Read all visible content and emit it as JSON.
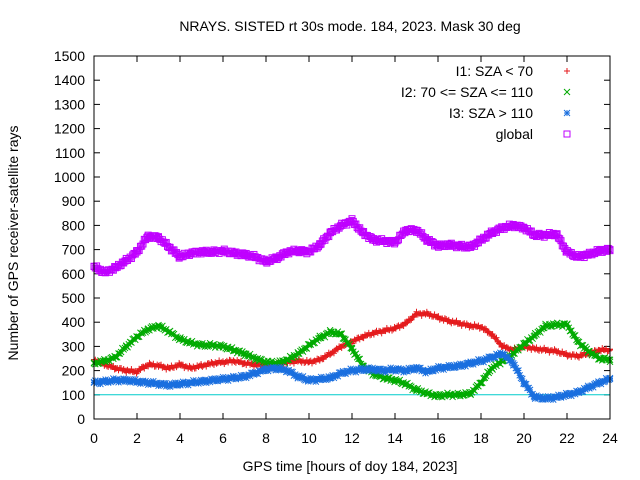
{
  "chart_data": {
    "type": "scatter",
    "title": "NRAYS. SISTED rt 30s mode. 184, 2023. Mask 30 deg",
    "xlabel": "GPS time [hours of doy 184, 2023]",
    "ylabel": "Number of GPS receiver-satellite rays",
    "xlim": [
      0,
      24
    ],
    "ylim": [
      0,
      1500
    ],
    "xticks": [
      0,
      2,
      4,
      6,
      8,
      10,
      12,
      14,
      16,
      18,
      20,
      22,
      24
    ],
    "yticks": [
      0,
      100,
      200,
      300,
      400,
      500,
      600,
      700,
      800,
      900,
      1000,
      1100,
      1200,
      1300,
      1400,
      1500
    ],
    "grid": false,
    "legend_position": "top-right",
    "reference_line": {
      "y": 100,
      "color": "#00cccc"
    },
    "series": [
      {
        "name": "I1: SZA < 70",
        "marker": "+",
        "color": "#e41a1c",
        "x": [
          0,
          0.5,
          1,
          1.5,
          2,
          2.3,
          2.6,
          3,
          3.5,
          4,
          4.5,
          5,
          5.5,
          6,
          6.5,
          7,
          7.5,
          8,
          8.5,
          9,
          9.5,
          10,
          10.5,
          11,
          11.5,
          12,
          12.5,
          13,
          13.5,
          14,
          14.5,
          15,
          15.5,
          16,
          16.5,
          17,
          17.5,
          18,
          18.5,
          19,
          19.5,
          20,
          20.5,
          21,
          21.5,
          22,
          22.5,
          23,
          23.5,
          24
        ],
        "values": [
          245,
          225,
          210,
          200,
          195,
          215,
          225,
          220,
          210,
          225,
          210,
          220,
          230,
          235,
          240,
          230,
          225,
          220,
          225,
          235,
          240,
          235,
          245,
          270,
          300,
          320,
          340,
          355,
          365,
          375,
          395,
          435,
          435,
          420,
          405,
          395,
          385,
          380,
          350,
          300,
          285,
          300,
          290,
          285,
          280,
          265,
          260,
          270,
          285,
          285
        ]
      },
      {
        "name": "I2: 70 <= SZA <= 110",
        "marker": "x",
        "color": "#00aa00",
        "x": [
          0,
          0.5,
          1,
          1.5,
          2,
          2.5,
          3,
          3.5,
          4,
          4.5,
          5,
          5.5,
          6,
          6.5,
          7,
          7.5,
          8,
          8.5,
          9,
          9.5,
          10,
          10.5,
          11,
          11.5,
          12,
          12.5,
          13,
          13.5,
          14,
          14.5,
          15,
          15.5,
          16,
          16.5,
          17,
          17.5,
          18,
          18.5,
          19,
          19.5,
          20,
          20.5,
          21,
          21.5,
          22,
          22.5,
          23,
          23.5,
          24
        ],
        "values": [
          230,
          240,
          255,
          300,
          340,
          370,
          385,
          360,
          330,
          315,
          305,
          305,
          300,
          285,
          270,
          250,
          235,
          230,
          245,
          270,
          305,
          335,
          360,
          350,
          290,
          220,
          185,
          170,
          160,
          145,
          120,
          105,
          95,
          100,
          100,
          105,
          150,
          210,
          240,
          270,
          310,
          345,
          385,
          390,
          390,
          320,
          280,
          250,
          245
        ]
      },
      {
        "name": "I3: SZA > 110",
        "marker": "*",
        "color": "#1a6fdf",
        "x": [
          0,
          0.5,
          1,
          1.5,
          2,
          2.5,
          3,
          3.5,
          4,
          4.5,
          5,
          5.5,
          6,
          6.5,
          7,
          7.5,
          8,
          8.5,
          9,
          9.5,
          10,
          10.5,
          11,
          11.5,
          12,
          12.5,
          13,
          13.5,
          14,
          14.5,
          15,
          15.5,
          16,
          16.5,
          17,
          17.5,
          18,
          18.5,
          19,
          19.5,
          20,
          20.5,
          21,
          21.5,
          22,
          22.5,
          23,
          23.5,
          24
        ],
        "values": [
          150,
          155,
          160,
          160,
          155,
          150,
          145,
          140,
          145,
          150,
          155,
          160,
          165,
          170,
          175,
          190,
          205,
          210,
          200,
          175,
          160,
          165,
          170,
          190,
          200,
          205,
          205,
          200,
          205,
          200,
          210,
          195,
          210,
          215,
          220,
          230,
          240,
          255,
          270,
          230,
          150,
          90,
          85,
          90,
          100,
          110,
          130,
          150,
          165
        ]
      },
      {
        "name": "global",
        "marker": "square",
        "color": "#bf00ff",
        "x": [
          0,
          0.5,
          1,
          1.5,
          2,
          2.5,
          3,
          3.5,
          4,
          4.5,
          5,
          5.5,
          6,
          6.5,
          7,
          7.5,
          8,
          8.5,
          9,
          9.5,
          10,
          10.5,
          11,
          11.5,
          12,
          12.5,
          13,
          13.5,
          14,
          14.5,
          15,
          15.5,
          16,
          16.5,
          17,
          17.5,
          18,
          18.5,
          19,
          19.5,
          20,
          20.5,
          21,
          21.5,
          22,
          22.5,
          23,
          23.5,
          24
        ],
        "values": [
          630,
          605,
          625,
          655,
          690,
          755,
          750,
          710,
          670,
          685,
          690,
          690,
          695,
          685,
          680,
          670,
          650,
          665,
          690,
          695,
          690,
          720,
          770,
          800,
          820,
          770,
          740,
          735,
          730,
          780,
          780,
          740,
          715,
          720,
          715,
          710,
          740,
          770,
          790,
          800,
          790,
          760,
          760,
          765,
          690,
          670,
          680,
          695,
          700
        ]
      }
    ]
  }
}
